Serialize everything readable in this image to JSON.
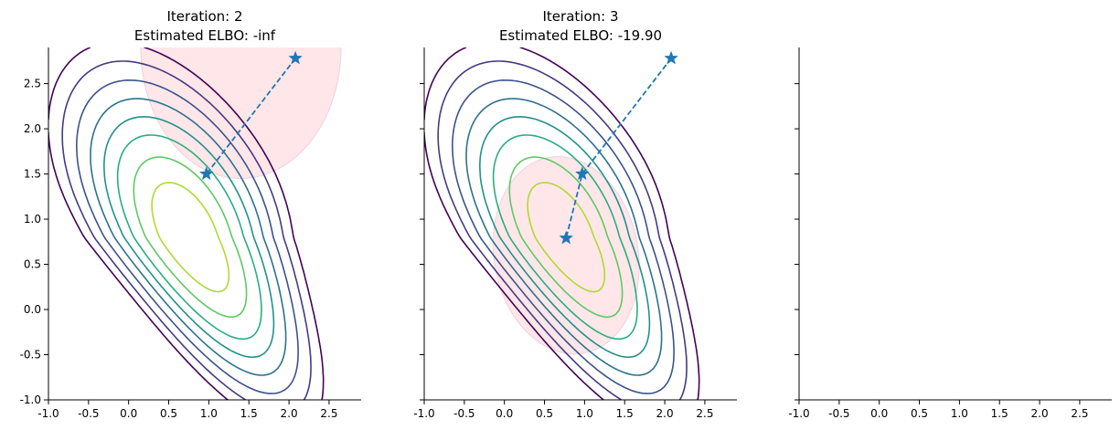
{
  "chart_data": [
    {
      "type": "contour",
      "title_line1": "Iteration: 2",
      "title_line2": "Estimated ELBO: -inf",
      "xlim": [
        -1.0,
        2.9
      ],
      "ylim": [
        -1.0,
        2.9
      ],
      "xticks": [
        "-1.0",
        "-0.5",
        "0.0",
        "0.5",
        "1.0",
        "1.5",
        "2.0",
        "2.5"
      ],
      "yticks": [
        "-1.0",
        "-0.5",
        "0.0",
        "0.5",
        "1.0",
        "1.5",
        "2.0",
        "2.5"
      ],
      "show_yticklabels": true,
      "contours": true,
      "approx_ellipse": {
        "cx": 1.4,
        "cy": 2.9,
        "rx": 1.25,
        "ry": 1.45,
        "rotation": 0
      },
      "path": [
        {
          "x": 2.08,
          "y": 2.78
        },
        {
          "x": 0.97,
          "y": 1.5
        }
      ]
    },
    {
      "type": "contour",
      "title_line1": "Iteration: 3",
      "title_line2": "Estimated ELBO: -19.90",
      "xlim": [
        -1.0,
        2.9
      ],
      "ylim": [
        -1.0,
        2.9
      ],
      "xticks": [
        "-1.0",
        "-0.5",
        "0.0",
        "0.5",
        "1.0",
        "1.5",
        "2.0",
        "2.5"
      ],
      "yticks": [
        "-1.0",
        "-0.5",
        "0.0",
        "0.5",
        "1.0",
        "1.5",
        "2.0",
        "2.5"
      ],
      "show_yticklabels": false,
      "contours": true,
      "approx_ellipse": {
        "cx": 0.77,
        "cy": 0.6,
        "rx": 0.9,
        "ry": 1.1,
        "rotation": -10
      },
      "path": [
        {
          "x": 2.08,
          "y": 2.78
        },
        {
          "x": 0.97,
          "y": 1.5
        },
        {
          "x": 0.77,
          "y": 0.79
        }
      ]
    },
    {
      "type": "contour",
      "title_line1": "",
      "title_line2": "",
      "xlim": [
        -1.0,
        2.9
      ],
      "ylim": [
        -1.0,
        2.9
      ],
      "xticks": [
        "-1.0",
        "-0.5",
        "0.0",
        "0.5",
        "1.0",
        "1.5",
        "2.0",
        "2.5"
      ],
      "yticks": [
        "-1.0",
        "-0.5",
        "0.0",
        "0.5",
        "1.0",
        "1.5",
        "2.0",
        "2.5"
      ],
      "show_yticklabels": false,
      "contours": false,
      "approx_ellipse": null,
      "path": []
    }
  ],
  "colors": {
    "contour_levels": [
      "#440154",
      "#443a83",
      "#3b528b",
      "#2c728e",
      "#21918c",
      "#28ae80",
      "#5ec962",
      "#addc30"
    ],
    "path": "#1f77b4",
    "ellipse_fill": "#ffb6c1",
    "axis": "#000000"
  }
}
